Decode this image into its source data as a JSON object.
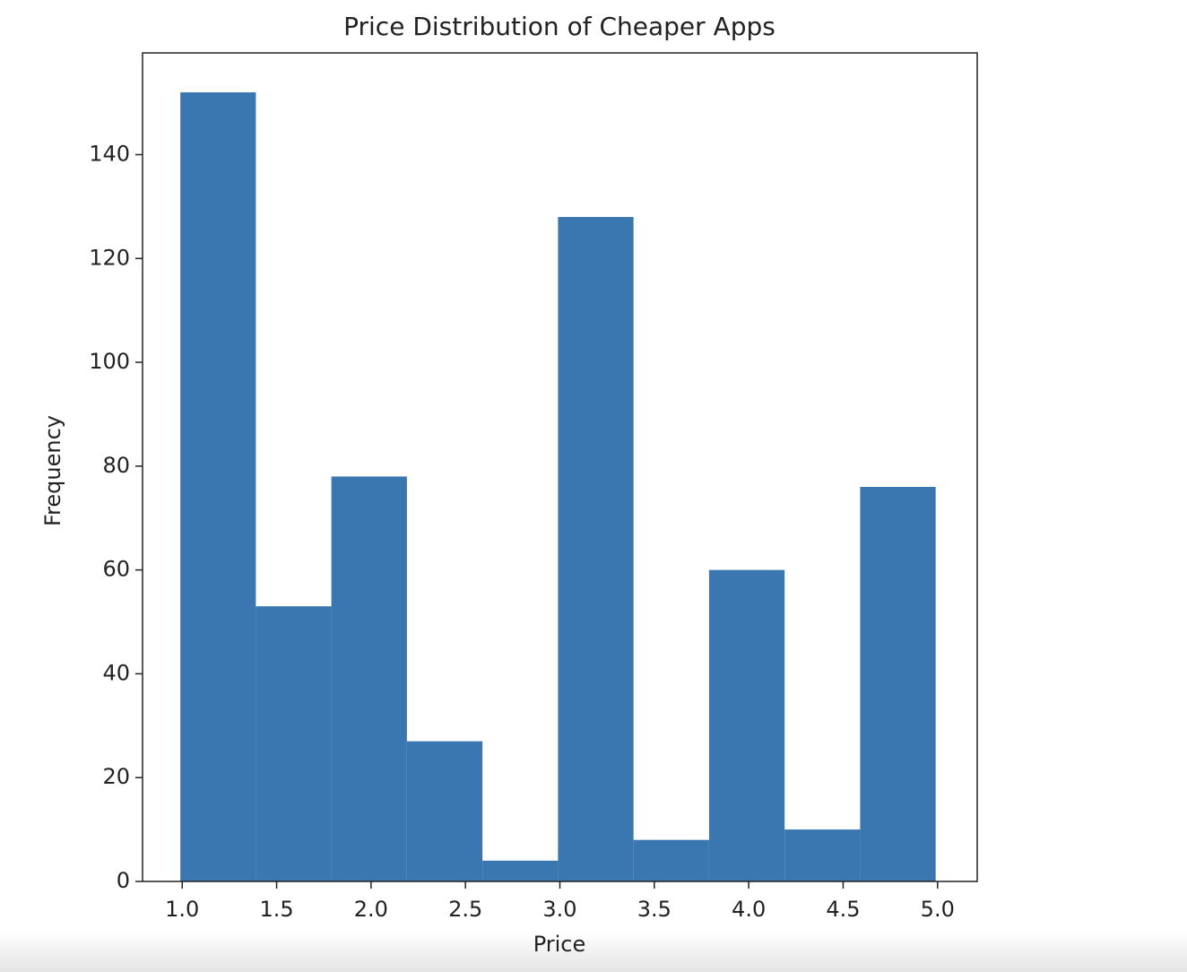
{
  "chart_data": {
    "type": "histogram",
    "title": "Price Distribution of Cheaper Apps",
    "x_label": "Price",
    "y_label": "Frequency",
    "bins": [
      0.99,
      1.39,
      1.79,
      2.19,
      2.59,
      2.99,
      3.39,
      3.79,
      4.19,
      4.59,
      4.99
    ],
    "values": [
      152,
      53,
      78,
      27,
      4,
      128,
      8,
      60,
      10,
      76
    ],
    "color": "#3a77b1",
    "xlim": [
      0.79,
      5.21
    ],
    "ylim": [
      0,
      159.6
    ],
    "xticks": [
      {
        "value": 1,
        "label": "1.0"
      },
      1.5,
      {
        "value": 2,
        "label": "2.0"
      },
      2.5,
      {
        "value": 3,
        "label": "3.0"
      },
      3.5,
      {
        "value": 4,
        "label": "4.0"
      },
      4.5,
      {
        "value": 5,
        "label": "5.0"
      }
    ],
    "yticks": [
      0,
      20,
      40,
      60,
      80,
      100,
      120,
      140
    ],
    "grid": false
  }
}
